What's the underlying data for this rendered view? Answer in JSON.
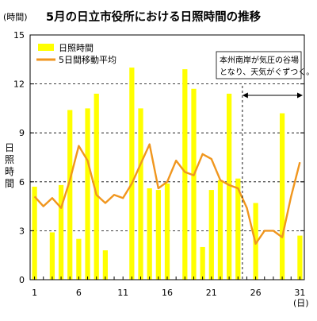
{
  "chart_data": {
    "type": "bar",
    "title": "5月の日立市役所における日照時間の推移",
    "y_unit": "(時間)",
    "ylabel": "日照時間",
    "x_unit": "(日)",
    "ylim": [
      0,
      15
    ],
    "yticks": [
      0,
      3,
      6,
      9,
      12,
      15
    ],
    "grid": "horizontal dashed",
    "xticks": [
      1,
      6,
      11,
      16,
      21,
      26,
      31
    ],
    "legend_position": "top-left",
    "series": [
      {
        "name": "日照時間",
        "type": "bar",
        "color": "#ffff00",
        "x": [
          1,
          2,
          3,
          4,
          5,
          6,
          7,
          8,
          9,
          10,
          11,
          12,
          13,
          14,
          15,
          16,
          17,
          18,
          19,
          20,
          21,
          22,
          23,
          24,
          25,
          26,
          27,
          28,
          29,
          30,
          31
        ],
        "values": [
          5.7,
          0,
          2.9,
          5.8,
          10.4,
          2.5,
          10.5,
          11.4,
          1.8,
          0,
          0,
          13.0,
          10.5,
          5.6,
          5.5,
          5.9,
          0,
          12.9,
          11.7,
          2.0,
          5.5,
          6.1,
          11.4,
          6.2,
          0,
          4.7,
          0,
          0,
          10.2,
          0,
          2.7
        ]
      },
      {
        "name": "5日間移動平均",
        "type": "line",
        "color": "#f0961e",
        "x": [
          1,
          2,
          3,
          4,
          5,
          6,
          7,
          8,
          9,
          10,
          11,
          12,
          13,
          14,
          15,
          16,
          17,
          18,
          19,
          20,
          21,
          22,
          23,
          24,
          25,
          26,
          27,
          28,
          29,
          30,
          31
        ],
        "values": [
          5.1,
          4.5,
          5.0,
          4.4,
          6.1,
          8.2,
          7.3,
          5.2,
          4.7,
          5.2,
          5.0,
          5.9,
          7.1,
          8.3,
          5.6,
          6.0,
          7.3,
          6.6,
          6.4,
          7.7,
          7.4,
          6.1,
          5.8,
          5.6,
          4.4,
          2.2,
          3.0,
          3.0,
          2.6,
          5.1,
          7.2
        ]
      }
    ],
    "annotation": {
      "text_lines": [
        "本州南岸が気圧の谷場",
        "となり、天気がぐずつく。"
      ],
      "x_range": [
        25,
        31
      ]
    }
  }
}
